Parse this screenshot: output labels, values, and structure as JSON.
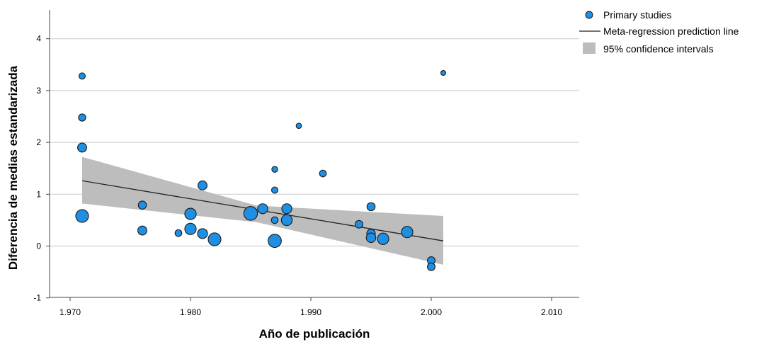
{
  "chart_data": {
    "type": "scatter",
    "title": "",
    "xlabel": "Año de publicación",
    "ylabel": "Diferencia de medias estandarizada",
    "xlim": [
      1968,
      2011
    ],
    "ylim": [
      -1,
      4.6
    ],
    "x_ticks": [
      1970,
      1980,
      1990,
      2000,
      2010
    ],
    "x_tick_labels": [
      "1.970",
      "1.980",
      "1.990",
      "2.000",
      "2.010"
    ],
    "y_ticks": [
      -1,
      0,
      1,
      2,
      3,
      4
    ],
    "y_tick_labels": [
      "-1",
      "0",
      "1",
      "2",
      "3",
      "4"
    ],
    "grid": "horizontal",
    "legend_position": "top-right",
    "legend": [
      {
        "label": "Primary studies",
        "kind": "point"
      },
      {
        "label": "Meta-regression prediction line",
        "kind": "line"
      },
      {
        "label": "95% confidence intervals",
        "kind": "band"
      }
    ],
    "colors": {
      "points": "#1f8fe3",
      "point_stroke": "#1a1a1a",
      "line": "#222222",
      "band": "#bdbdbd",
      "grid": "#d0d0d0"
    },
    "series": [
      {
        "kind": "points",
        "points": [
          {
            "x": 1971,
            "y": 3.28,
            "w": 0.3
          },
          {
            "x": 1971,
            "y": 2.48,
            "w": 0.4
          },
          {
            "x": 1971,
            "y": 1.9,
            "w": 0.6
          },
          {
            "x": 1971,
            "y": 0.58,
            "w": 1.0
          },
          {
            "x": 1976,
            "y": 0.79,
            "w": 0.5
          },
          {
            "x": 1976,
            "y": 0.3,
            "w": 0.6
          },
          {
            "x": 1979,
            "y": 0.25,
            "w": 0.35
          },
          {
            "x": 1980,
            "y": 0.62,
            "w": 0.85
          },
          {
            "x": 1980,
            "y": 0.33,
            "w": 0.85
          },
          {
            "x": 1981,
            "y": 1.17,
            "w": 0.6
          },
          {
            "x": 1981,
            "y": 0.24,
            "w": 0.7
          },
          {
            "x": 1982,
            "y": 0.13,
            "w": 1.0
          },
          {
            "x": 1985,
            "y": 0.63,
            "w": 1.1
          },
          {
            "x": 1986,
            "y": 0.72,
            "w": 0.7
          },
          {
            "x": 1987,
            "y": 1.48,
            "w": 0.25
          },
          {
            "x": 1987,
            "y": 1.08,
            "w": 0.3
          },
          {
            "x": 1987,
            "y": 0.5,
            "w": 0.35
          },
          {
            "x": 1987,
            "y": 0.1,
            "w": 1.05
          },
          {
            "x": 1988,
            "y": 0.72,
            "w": 0.7
          },
          {
            "x": 1988,
            "y": 0.5,
            "w": 0.8
          },
          {
            "x": 1989,
            "y": 2.32,
            "w": 0.2
          },
          {
            "x": 1991,
            "y": 1.4,
            "w": 0.35
          },
          {
            "x": 1994,
            "y": 0.42,
            "w": 0.45
          },
          {
            "x": 1995,
            "y": 0.76,
            "w": 0.5
          },
          {
            "x": 1995,
            "y": 0.24,
            "w": 0.55
          },
          {
            "x": 1995,
            "y": 0.16,
            "w": 0.65
          },
          {
            "x": 1996,
            "y": 0.14,
            "w": 0.85
          },
          {
            "x": 1998,
            "y": 0.27,
            "w": 0.85
          },
          {
            "x": 2000,
            "y": -0.28,
            "w": 0.45
          },
          {
            "x": 2000,
            "y": -0.4,
            "w": 0.45
          },
          {
            "x": 2001,
            "y": 3.34,
            "w": 0.15
          }
        ]
      },
      {
        "kind": "line",
        "x": [
          1971,
          2001
        ],
        "y": [
          1.26,
          0.1
        ]
      },
      {
        "kind": "band",
        "x": [
          1971,
          1985.5,
          2001
        ],
        "lower": [
          0.82,
          0.46,
          -0.36
        ],
        "upper": [
          1.72,
          0.78,
          0.58
        ]
      }
    ]
  }
}
